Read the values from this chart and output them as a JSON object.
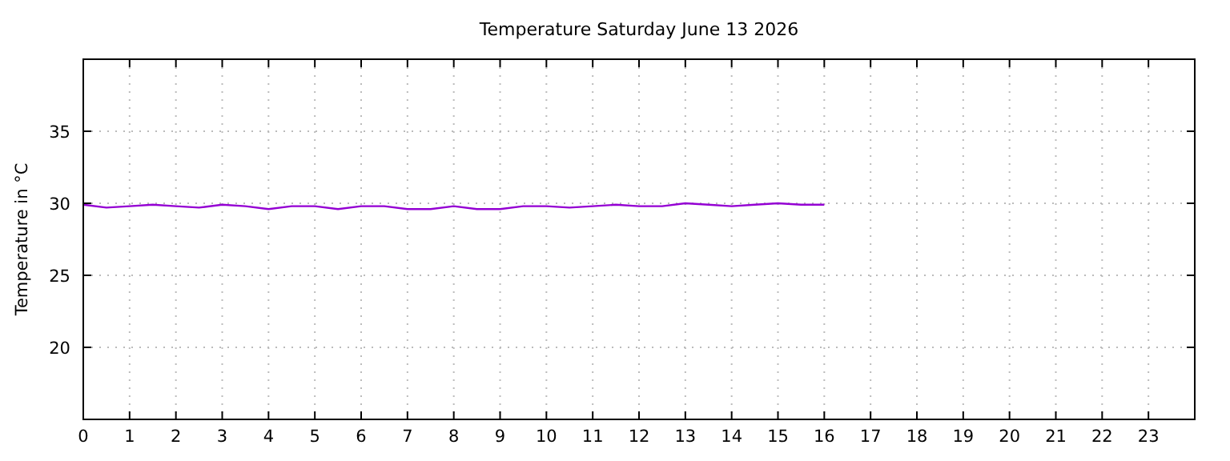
{
  "chart_data": {
    "type": "line",
    "title": "Temperature Saturday June 13 2026",
    "ylabel": "Temperature in °C",
    "x": [
      0,
      0.5,
      1,
      1.5,
      2,
      2.5,
      3,
      3.5,
      4,
      4.5,
      5,
      5.5,
      6,
      6.5,
      7,
      7.5,
      8,
      8.5,
      9,
      9.5,
      10,
      10.5,
      11,
      11.5,
      12,
      12.5,
      13,
      13.5,
      14,
      14.5,
      15,
      15.5,
      16
    ],
    "series": [
      {
        "color": "#9400d3",
        "values": [
          29.9,
          29.7,
          29.8,
          29.9,
          29.8,
          29.7,
          29.9,
          29.8,
          29.6,
          29.8,
          29.8,
          29.6,
          29.8,
          29.8,
          29.6,
          29.6,
          29.8,
          29.6,
          29.6,
          29.8,
          29.8,
          29.7,
          29.8,
          29.9,
          29.8,
          29.8,
          30.0,
          29.9,
          29.8,
          29.9,
          30.0,
          29.9,
          29.9
        ]
      }
    ],
    "xlim": [
      0,
      24
    ],
    "xticks": [
      0,
      1,
      2,
      3,
      4,
      5,
      6,
      7,
      8,
      9,
      10,
      11,
      12,
      13,
      14,
      15,
      16,
      17,
      18,
      19,
      20,
      21,
      22,
      23
    ],
    "ylim": [
      15,
      40
    ],
    "yticks": [
      20,
      25,
      30,
      35
    ],
    "grid": true,
    "marker": "none",
    "line_style": "solid"
  }
}
